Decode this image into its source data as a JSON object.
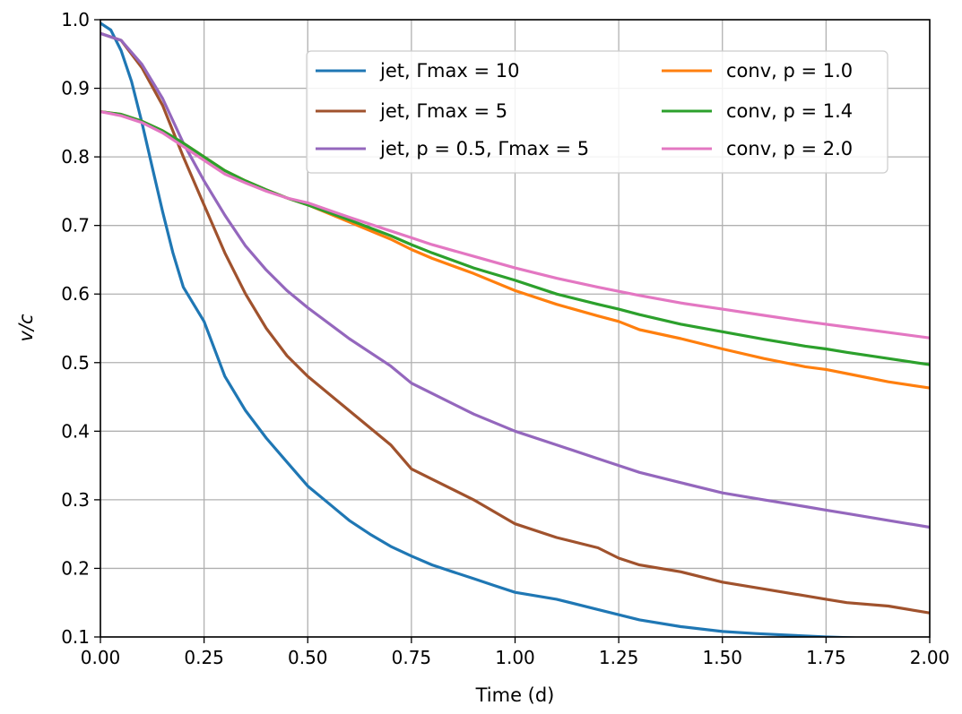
{
  "chart_data": {
    "type": "line",
    "xlabel": "Time (d)",
    "ylabel": "v/c",
    "xlim": [
      0,
      2.0
    ],
    "ylim": [
      0.1,
      1.0
    ],
    "xticks": [
      "0.00",
      "0.25",
      "0.50",
      "0.75",
      "1.00",
      "1.25",
      "1.50",
      "1.75",
      "2.00"
    ],
    "yticks": [
      "0.1",
      "0.2",
      "0.3",
      "0.4",
      "0.5",
      "0.6",
      "0.7",
      "0.8",
      "0.9",
      "1.0"
    ],
    "grid": true,
    "legend_position": "top-right",
    "series": [
      {
        "name": "jet, Γmax = 10",
        "color": "#1f77b4",
        "points": [
          [
            0,
            0.995
          ],
          [
            0.025,
            0.985
          ],
          [
            0.05,
            0.955
          ],
          [
            0.075,
            0.91
          ],
          [
            0.1,
            0.85
          ],
          [
            0.125,
            0.785
          ],
          [
            0.15,
            0.72
          ],
          [
            0.175,
            0.66
          ],
          [
            0.2,
            0.61
          ],
          [
            0.25,
            0.56
          ],
          [
            0.3,
            0.48
          ],
          [
            0.35,
            0.43
          ],
          [
            0.4,
            0.39
          ],
          [
            0.45,
            0.355
          ],
          [
            0.5,
            0.32
          ],
          [
            0.55,
            0.295
          ],
          [
            0.6,
            0.27
          ],
          [
            0.65,
            0.25
          ],
          [
            0.7,
            0.232
          ],
          [
            0.75,
            0.218
          ],
          [
            0.8,
            0.205
          ],
          [
            0.85,
            0.195
          ],
          [
            0.9,
            0.185
          ],
          [
            0.95,
            0.175
          ],
          [
            1.0,
            0.165
          ],
          [
            1.1,
            0.155
          ],
          [
            1.2,
            0.14
          ],
          [
            1.3,
            0.125
          ],
          [
            1.4,
            0.115
          ],
          [
            1.5,
            0.108
          ],
          [
            1.58,
            0.105
          ],
          [
            1.75,
            0.1
          ],
          [
            2.0,
            0.095
          ]
        ]
      },
      {
        "name": "jet, Γmax = 5",
        "color": "#a0522d",
        "points": [
          [
            0,
            0.98
          ],
          [
            0.05,
            0.97
          ],
          [
            0.1,
            0.93
          ],
          [
            0.15,
            0.875
          ],
          [
            0.2,
            0.8
          ],
          [
            0.25,
            0.73
          ],
          [
            0.3,
            0.66
          ],
          [
            0.35,
            0.6
          ],
          [
            0.4,
            0.55
          ],
          [
            0.45,
            0.51
          ],
          [
            0.5,
            0.48
          ],
          [
            0.6,
            0.43
          ],
          [
            0.7,
            0.38
          ],
          [
            0.75,
            0.345
          ],
          [
            0.8,
            0.33
          ],
          [
            0.9,
            0.3
          ],
          [
            1.0,
            0.265
          ],
          [
            1.1,
            0.245
          ],
          [
            1.2,
            0.23
          ],
          [
            1.25,
            0.215
          ],
          [
            1.3,
            0.205
          ],
          [
            1.4,
            0.195
          ],
          [
            1.5,
            0.18
          ],
          [
            1.6,
            0.17
          ],
          [
            1.7,
            0.16
          ],
          [
            1.75,
            0.155
          ],
          [
            1.8,
            0.15
          ],
          [
            1.9,
            0.145
          ],
          [
            2.0,
            0.135
          ]
        ]
      },
      {
        "name": "jet, p = 0.5, Γmax = 5",
        "color": "#9467bd",
        "points": [
          [
            0,
            0.98
          ],
          [
            0.05,
            0.97
          ],
          [
            0.1,
            0.935
          ],
          [
            0.15,
            0.885
          ],
          [
            0.2,
            0.82
          ],
          [
            0.25,
            0.765
          ],
          [
            0.3,
            0.715
          ],
          [
            0.35,
            0.67
          ],
          [
            0.4,
            0.635
          ],
          [
            0.45,
            0.605
          ],
          [
            0.5,
            0.58
          ],
          [
            0.6,
            0.535
          ],
          [
            0.7,
            0.495
          ],
          [
            0.75,
            0.47
          ],
          [
            0.8,
            0.455
          ],
          [
            0.9,
            0.425
          ],
          [
            1.0,
            0.4
          ],
          [
            1.1,
            0.38
          ],
          [
            1.2,
            0.36
          ],
          [
            1.25,
            0.35
          ],
          [
            1.3,
            0.34
          ],
          [
            1.4,
            0.325
          ],
          [
            1.5,
            0.31
          ],
          [
            1.6,
            0.3
          ],
          [
            1.7,
            0.29
          ],
          [
            1.75,
            0.285
          ],
          [
            1.8,
            0.28
          ],
          [
            1.9,
            0.27
          ],
          [
            2.0,
            0.26
          ]
        ]
      },
      {
        "name": "conv, p = 1.0",
        "color": "#ff7f0e",
        "points": [
          [
            0,
            0.866
          ],
          [
            0.05,
            0.862
          ],
          [
            0.1,
            0.852
          ],
          [
            0.15,
            0.838
          ],
          [
            0.2,
            0.82
          ],
          [
            0.25,
            0.8
          ],
          [
            0.3,
            0.78
          ],
          [
            0.35,
            0.765
          ],
          [
            0.4,
            0.752
          ],
          [
            0.45,
            0.74
          ],
          [
            0.5,
            0.73
          ],
          [
            0.6,
            0.705
          ],
          [
            0.7,
            0.68
          ],
          [
            0.75,
            0.665
          ],
          [
            0.8,
            0.652
          ],
          [
            0.9,
            0.63
          ],
          [
            1.0,
            0.605
          ],
          [
            1.1,
            0.585
          ],
          [
            1.2,
            0.568
          ],
          [
            1.25,
            0.56
          ],
          [
            1.3,
            0.548
          ],
          [
            1.4,
            0.535
          ],
          [
            1.5,
            0.52
          ],
          [
            1.6,
            0.506
          ],
          [
            1.7,
            0.494
          ],
          [
            1.75,
            0.49
          ],
          [
            1.8,
            0.484
          ],
          [
            1.9,
            0.472
          ],
          [
            2.0,
            0.463
          ]
        ]
      },
      {
        "name": "conv, p = 1.4",
        "color": "#2ca02c",
        "points": [
          [
            0,
            0.866
          ],
          [
            0.05,
            0.862
          ],
          [
            0.1,
            0.852
          ],
          [
            0.15,
            0.838
          ],
          [
            0.2,
            0.82
          ],
          [
            0.25,
            0.8
          ],
          [
            0.3,
            0.78
          ],
          [
            0.35,
            0.765
          ],
          [
            0.4,
            0.752
          ],
          [
            0.45,
            0.74
          ],
          [
            0.5,
            0.73
          ],
          [
            0.6,
            0.708
          ],
          [
            0.7,
            0.685
          ],
          [
            0.75,
            0.672
          ],
          [
            0.8,
            0.66
          ],
          [
            0.9,
            0.638
          ],
          [
            1.0,
            0.62
          ],
          [
            1.1,
            0.6
          ],
          [
            1.2,
            0.585
          ],
          [
            1.25,
            0.578
          ],
          [
            1.3,
            0.57
          ],
          [
            1.4,
            0.556
          ],
          [
            1.5,
            0.545
          ],
          [
            1.6,
            0.534
          ],
          [
            1.7,
            0.524
          ],
          [
            1.75,
            0.52
          ],
          [
            1.8,
            0.515
          ],
          [
            1.9,
            0.506
          ],
          [
            2.0,
            0.497
          ]
        ]
      },
      {
        "name": "conv, p = 2.0",
        "color": "#e377c2",
        "points": [
          [
            0,
            0.866
          ],
          [
            0.05,
            0.86
          ],
          [
            0.1,
            0.85
          ],
          [
            0.15,
            0.835
          ],
          [
            0.2,
            0.815
          ],
          [
            0.25,
            0.795
          ],
          [
            0.3,
            0.775
          ],
          [
            0.35,
            0.762
          ],
          [
            0.4,
            0.75
          ],
          [
            0.45,
            0.74
          ],
          [
            0.5,
            0.733
          ],
          [
            0.6,
            0.712
          ],
          [
            0.7,
            0.692
          ],
          [
            0.75,
            0.682
          ],
          [
            0.8,
            0.672
          ],
          [
            0.9,
            0.655
          ],
          [
            1.0,
            0.638
          ],
          [
            1.1,
            0.623
          ],
          [
            1.2,
            0.61
          ],
          [
            1.25,
            0.604
          ],
          [
            1.3,
            0.598
          ],
          [
            1.4,
            0.587
          ],
          [
            1.5,
            0.578
          ],
          [
            1.6,
            0.569
          ],
          [
            1.7,
            0.56
          ],
          [
            1.75,
            0.556
          ],
          [
            1.8,
            0.552
          ],
          [
            1.9,
            0.544
          ],
          [
            2.0,
            0.536
          ]
        ]
      }
    ]
  }
}
